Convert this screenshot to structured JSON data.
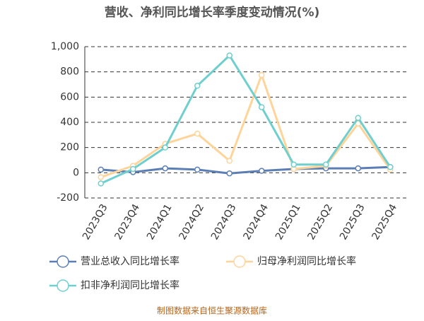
{
  "chart_data": {
    "type": "line",
    "title": "营收、净利同比增长率季度变动情况(%)",
    "categories": [
      "2023Q3",
      "2023Q4",
      "2024Q1",
      "2024Q2",
      "2024Q3",
      "2024Q4",
      "2025Q1",
      "2025Q2",
      "2025Q3",
      "2025Q4"
    ],
    "series": [
      {
        "name": "营业总收入同比增长率",
        "color": "#5b7fb5",
        "values": [
          25,
          5,
          35,
          25,
          -5,
          15,
          30,
          35,
          35,
          45
        ]
      },
      {
        "name": "归母净利润同比增长率",
        "color": "#ffd49a",
        "values": [
          -35,
          55,
          230,
          310,
          95,
          775,
          30,
          55,
          390,
          25
        ]
      },
      {
        "name": "扣非净利润同比增长率",
        "color": "#6fcfcf",
        "values": [
          -85,
          30,
          200,
          690,
          930,
          520,
          65,
          65,
          435,
          45
        ]
      }
    ],
    "ylim": [
      -200,
      1000
    ],
    "yticks": [
      -200,
      0,
      200,
      400,
      600,
      800,
      {
        "value": 1000,
        "label": "1,000"
      }
    ],
    "grid": true,
    "source": "制图数据来自恒生聚源数据库"
  }
}
